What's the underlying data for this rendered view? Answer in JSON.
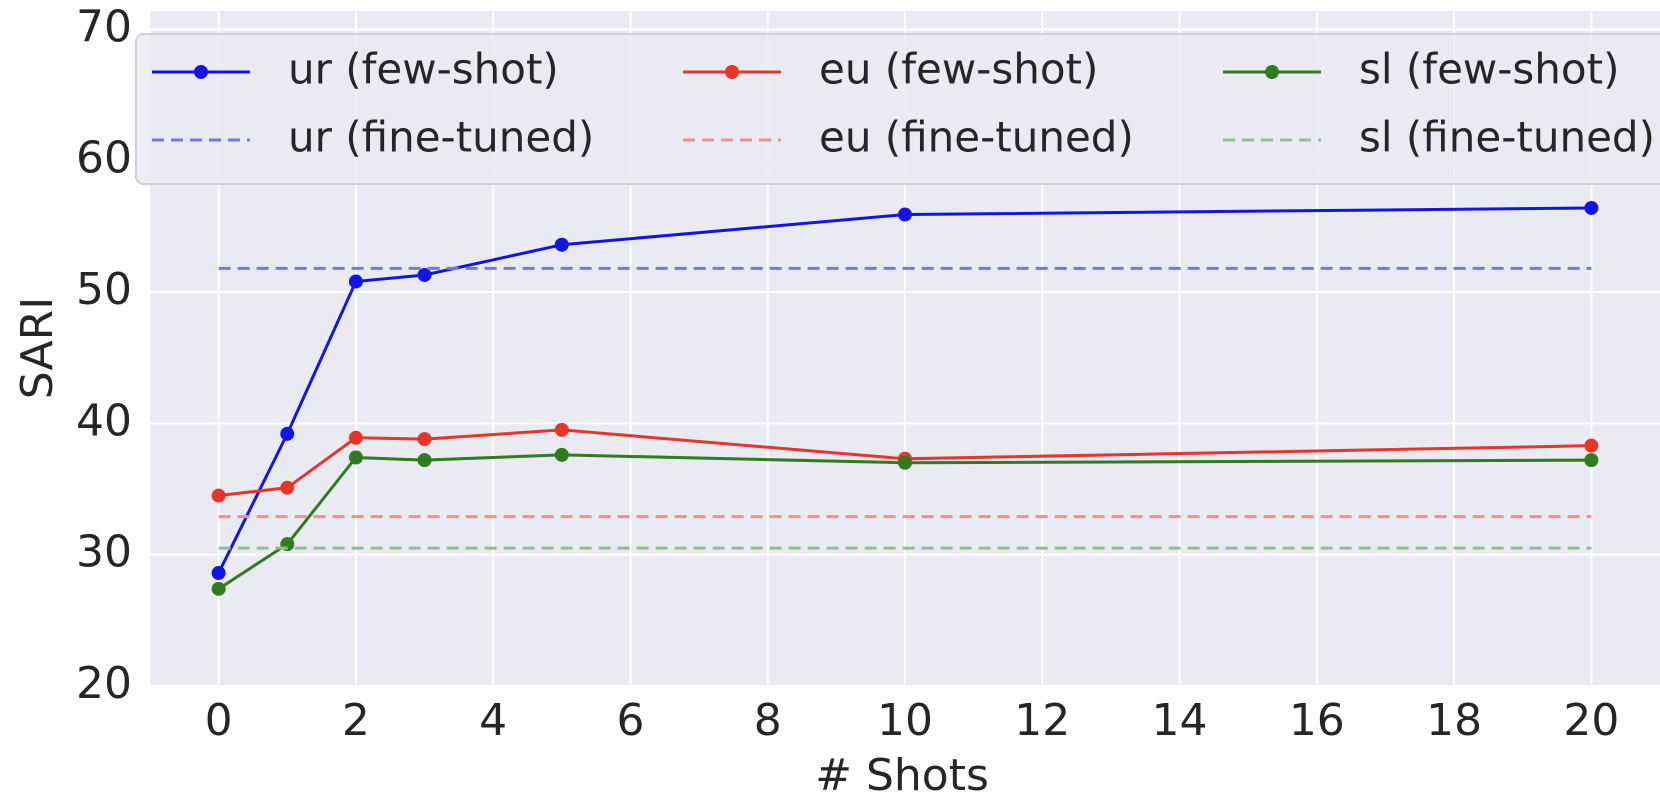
{
  "chart_data": {
    "type": "line",
    "xlabel": "# Shots",
    "ylabel": "SARI",
    "xlim": [
      -1,
      21
    ],
    "ylim": [
      20,
      71.4
    ],
    "xticks": [
      0,
      2,
      4,
      6,
      8,
      10,
      12,
      14,
      16,
      18,
      20
    ],
    "yticks": [
      20,
      30,
      40,
      50,
      60,
      70
    ],
    "grid": true,
    "legend": {
      "loc": "upper",
      "ncol": 3
    },
    "series": [
      {
        "name": "ur (few-shot)",
        "color": "#1414e6",
        "linestyle": "solid",
        "marker": true,
        "x": [
          0,
          1,
          2,
          3,
          5,
          10,
          20
        ],
        "values": [
          28.6,
          39.2,
          50.8,
          51.3,
          53.6,
          55.9,
          56.4
        ]
      },
      {
        "name": "ur (fine-tuned)",
        "color": "#7575f2",
        "linestyle": "dashed",
        "marker": false,
        "x": [
          0,
          20
        ],
        "values": [
          51.8,
          51.8
        ]
      },
      {
        "name": "eu (few-shot)",
        "color": "#e8352a",
        "linestyle": "solid",
        "marker": true,
        "x": [
          0,
          1,
          2,
          3,
          5,
          10,
          20
        ],
        "values": [
          34.5,
          35.1,
          38.9,
          38.8,
          39.5,
          37.3,
          38.3
        ]
      },
      {
        "name": "eu (fine-tuned)",
        "color": "#ef9090",
        "linestyle": "dashed",
        "marker": false,
        "x": [
          0,
          20
        ],
        "values": [
          32.9,
          32.9
        ]
      },
      {
        "name": "sl (few-shot)",
        "color": "#2e7d1e",
        "linestyle": "solid",
        "marker": true,
        "x": [
          0,
          1,
          2,
          3,
          5,
          10,
          20
        ],
        "values": [
          27.4,
          30.8,
          37.4,
          37.2,
          37.6,
          37.0,
          37.2
        ]
      },
      {
        "name": "sl (fine-tuned)",
        "color": "#90c090",
        "linestyle": "dashed",
        "marker": false,
        "x": [
          0,
          20
        ],
        "values": [
          30.5,
          30.5
        ]
      }
    ]
  }
}
